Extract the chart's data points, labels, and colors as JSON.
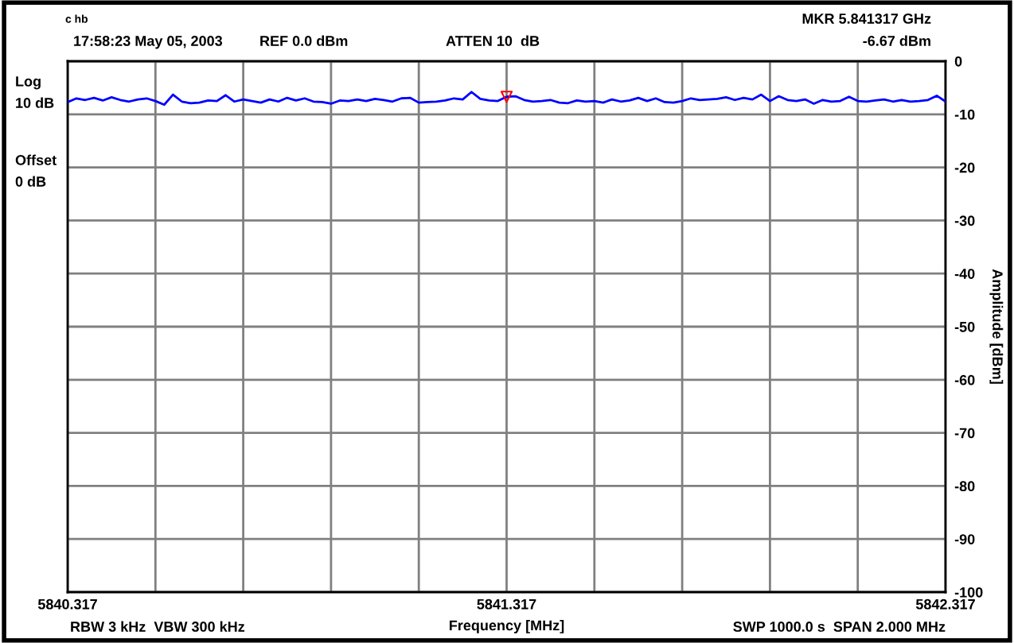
{
  "chart_data": {
    "type": "line",
    "ylabel": "Amplitude [dBm]",
    "xlabel": "Frequency [MHz]",
    "x": [
      5840.317,
      5840.337,
      5840.357,
      5840.377,
      5840.397,
      5840.417,
      5840.437,
      5840.457,
      5840.477,
      5840.497,
      5840.517,
      5840.537,
      5840.557,
      5840.577,
      5840.597,
      5840.617,
      5840.637,
      5840.657,
      5840.677,
      5840.697,
      5840.717,
      5840.737,
      5840.757,
      5840.777,
      5840.797,
      5840.817,
      5840.837,
      5840.857,
      5840.877,
      5840.897,
      5840.917,
      5840.937,
      5840.957,
      5840.977,
      5840.997,
      5841.017,
      5841.037,
      5841.057,
      5841.077,
      5841.097,
      5841.117,
      5841.137,
      5841.157,
      5841.177,
      5841.197,
      5841.217,
      5841.237,
      5841.257,
      5841.277,
      5841.297,
      5841.317,
      5841.337,
      5841.357,
      5841.377,
      5841.397,
      5841.417,
      5841.437,
      5841.457,
      5841.477,
      5841.497,
      5841.517,
      5841.537,
      5841.557,
      5841.577,
      5841.597,
      5841.617,
      5841.637,
      5841.657,
      5841.677,
      5841.697,
      5841.717,
      5841.737,
      5841.757,
      5841.777,
      5841.797,
      5841.817,
      5841.837,
      5841.857,
      5841.877,
      5841.897,
      5841.917,
      5841.937,
      5841.957,
      5841.977,
      5841.997,
      5842.017,
      5842.037,
      5842.057,
      5842.077,
      5842.097,
      5842.117,
      5842.137,
      5842.157,
      5842.177,
      5842.197,
      5842.217,
      5842.237,
      5842.257,
      5842.277,
      5842.297,
      5842.317
    ],
    "series": [
      {
        "color": "#0000ff",
        "values": [
          -7.7,
          -7.0,
          -7.3,
          -6.9,
          -7.4,
          -6.8,
          -7.3,
          -7.6,
          -7.2,
          -7.0,
          -7.5,
          -8.2,
          -6.3,
          -7.6,
          -7.9,
          -7.8,
          -7.4,
          -7.5,
          -6.4,
          -7.6,
          -7.2,
          -7.5,
          -7.8,
          -7.2,
          -7.6,
          -6.9,
          -7.4,
          -7.0,
          -7.6,
          -7.7,
          -8.0,
          -7.4,
          -7.5,
          -7.2,
          -7.5,
          -7.1,
          -7.3,
          -7.6,
          -7.0,
          -6.9,
          -7.8,
          -7.7,
          -7.6,
          -7.4,
          -7.0,
          -7.2,
          -5.8,
          -7.1,
          -7.4,
          -7.5,
          -6.7,
          -6.6,
          -7.3,
          -7.6,
          -7.5,
          -7.3,
          -7.8,
          -7.9,
          -7.4,
          -7.6,
          -7.5,
          -7.8,
          -7.2,
          -7.6,
          -7.4,
          -6.9,
          -7.5,
          -7.0,
          -7.7,
          -7.8,
          -7.5,
          -7.0,
          -7.3,
          -7.2,
          -7.1,
          -6.8,
          -7.3,
          -6.9,
          -7.2,
          -6.3,
          -7.5,
          -6.6,
          -7.3,
          -7.5,
          -7.2,
          -8.0,
          -7.3,
          -7.6,
          -7.5,
          -6.7,
          -7.5,
          -7.6,
          -7.4,
          -7.2,
          -7.6,
          -7.3,
          -7.6,
          -7.5,
          -7.3,
          -6.5,
          -7.6
        ]
      },
      {
        "type": "scatter",
        "color": "#ff0000",
        "marker": "triangle",
        "x": [
          5841.317
        ],
        "values": [
          -6.7
        ]
      }
    ],
    "xlim": [
      5840.317,
      5842.317
    ],
    "xticks": [
      {
        "value": 5840.317,
        "label": "5840.317"
      },
      {
        "value": 5840.517,
        "label": null
      },
      {
        "value": 5840.717,
        "label": null
      },
      {
        "value": 5840.917,
        "label": null
      },
      {
        "value": 5841.117,
        "label": null
      },
      {
        "value": 5841.317,
        "label": "5841.317"
      },
      {
        "value": 5841.517,
        "label": null
      },
      {
        "value": 5841.717,
        "label": null
      },
      {
        "value": 5841.917,
        "label": null
      },
      {
        "value": 5842.117,
        "label": null
      },
      {
        "value": 5842.317,
        "label": "5842.317"
      }
    ],
    "ylim": [
      -100,
      0
    ],
    "yticks": [
      -100,
      -90,
      -80,
      -70,
      -60,
      -50,
      -40,
      -30,
      -20,
      -10,
      0
    ],
    "grid": true,
    "annotations": [
      "c hb",
      "17:58:23 May 05, 2003",
      "REF 0.0 dBm",
      "ATTEN 10  dB",
      "MKR 5.841317 GHz",
      "-6.67 dBm",
      "Log",
      "10 dB",
      "Offset",
      "0 dB",
      "RBW 3 kHz  VBW 300 kHz",
      "SWP 1000.0 s  SPAN 2.000 MHz"
    ]
  }
}
